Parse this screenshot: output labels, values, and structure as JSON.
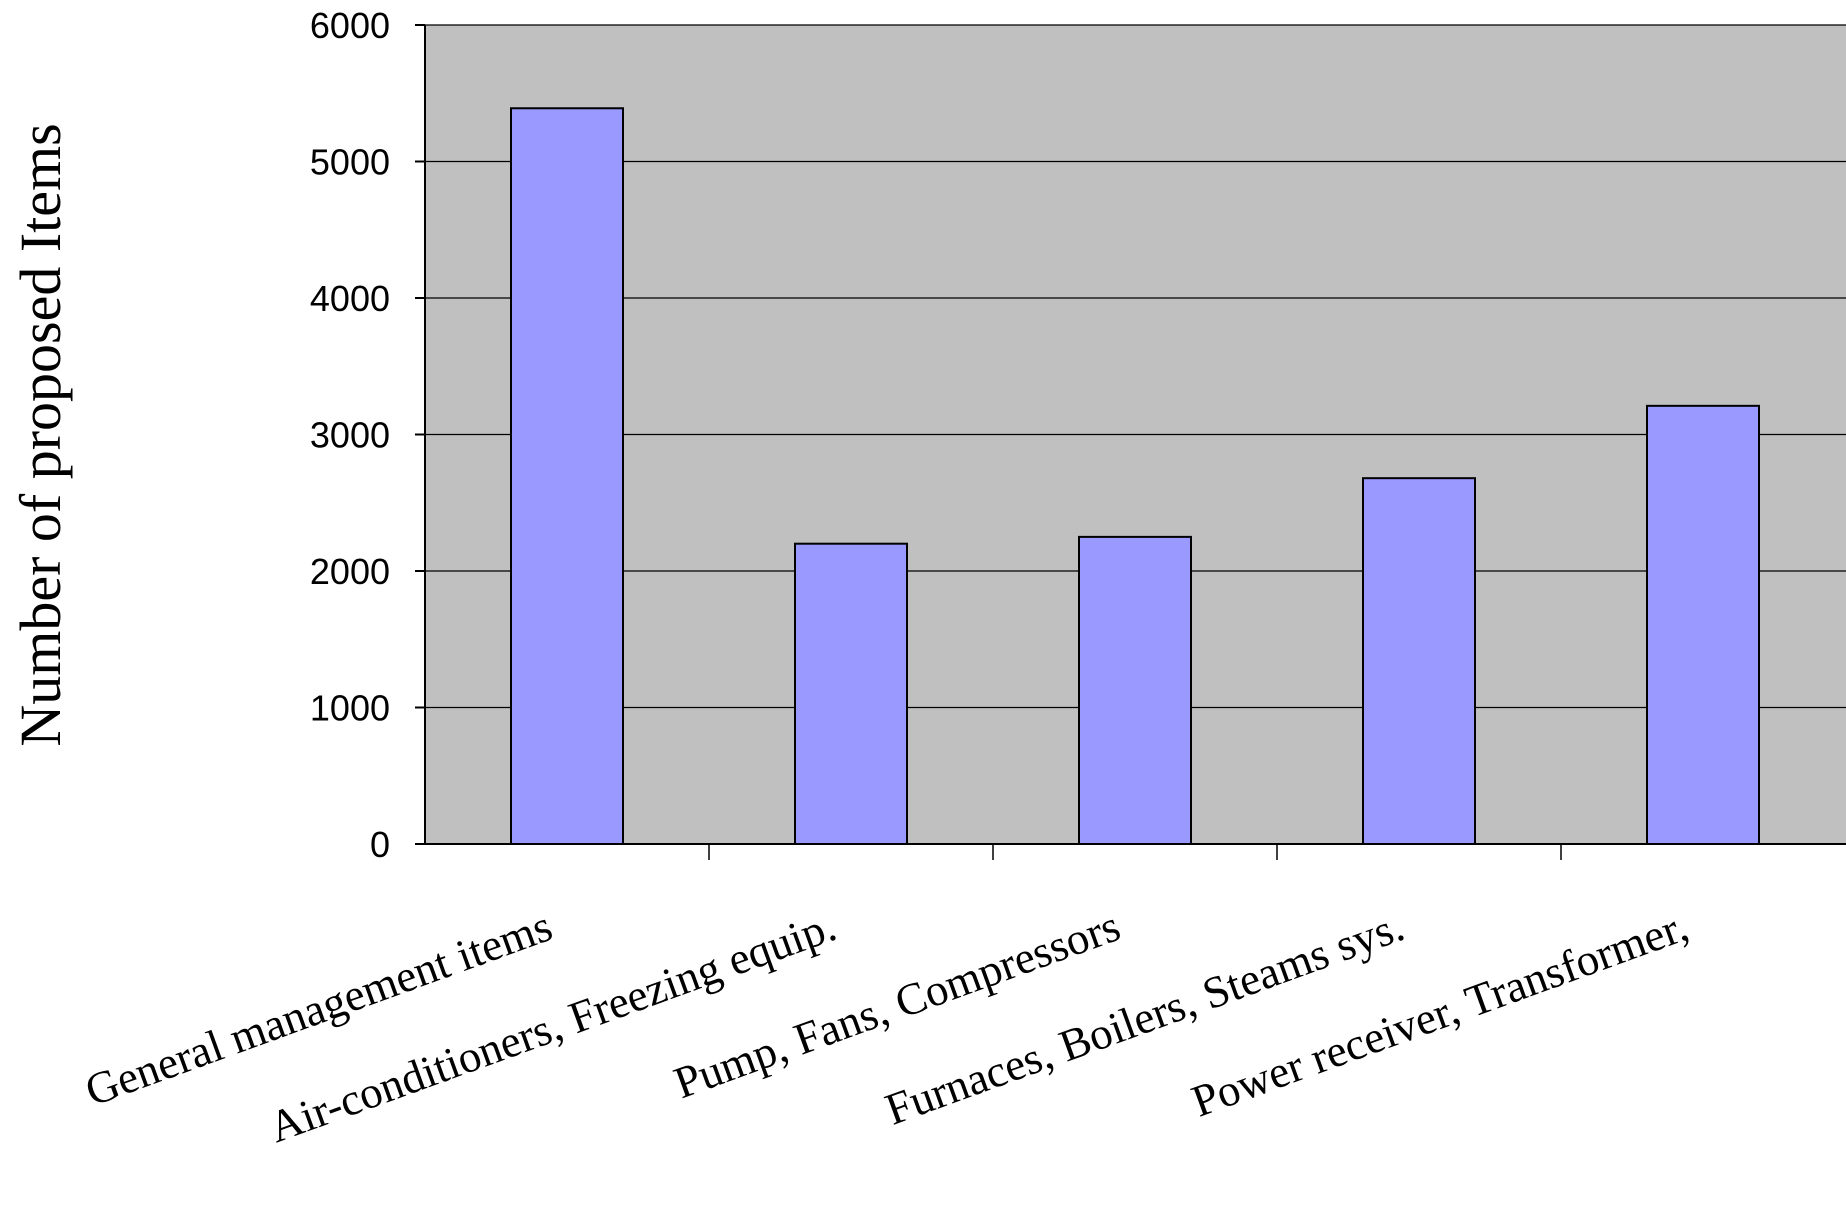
{
  "chart_data": {
    "type": "bar",
    "title": "",
    "xlabel": "",
    "ylabel": "Number of proposed Items",
    "categories": [
      "General management items",
      "Air-conditioners, Freezing equip.",
      "Pump, Fans, Compressors",
      "Furnaces, Boilers, Steams sys.",
      "Power receiver, Transformer,"
    ],
    "values": [
      5390,
      2200,
      2250,
      2680,
      3210
    ],
    "ylim": [
      0,
      6000
    ],
    "yticks": [
      "0",
      "1000",
      "2000",
      "3000",
      "4000",
      "5000",
      "6000"
    ],
    "grid": true,
    "legend": "none",
    "colors": {
      "bar_fill": "#9999ff",
      "bar_stroke": "#000000",
      "plot_background": "#c0c0c0",
      "gridline": "#000000"
    }
  }
}
